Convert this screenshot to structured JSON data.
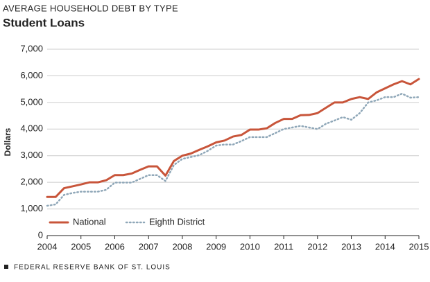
{
  "chart_data": {
    "type": "line",
    "title": "AVERAGE HOUSEHOLD DEBT BY TYPE",
    "subtitle": "Student Loans",
    "y_label": "Dollars",
    "source": "FEDERAL RESERVE BANK OF ST. LOUIS",
    "x": [
      2004,
      2004.25,
      2004.5,
      2004.75,
      2005,
      2005.25,
      2005.5,
      2005.75,
      2006,
      2006.25,
      2006.5,
      2006.75,
      2007,
      2007.25,
      2007.5,
      2007.75,
      2008,
      2008.25,
      2008.5,
      2008.75,
      2009,
      2009.25,
      2009.5,
      2009.75,
      2010,
      2010.25,
      2010.5,
      2010.75,
      2011,
      2011.25,
      2011.5,
      2011.75,
      2012,
      2012.25,
      2012.5,
      2012.75,
      2013,
      2013.25,
      2013.5,
      2013.75,
      2014,
      2014.25,
      2014.5,
      2014.75,
      2015
    ],
    "series": [
      {
        "name": "National",
        "color": "#c8553a",
        "style": "solid",
        "values": [
          1450,
          1450,
          1780,
          1850,
          1920,
          2000,
          2000,
          2080,
          2270,
          2270,
          2330,
          2470,
          2600,
          2600,
          2250,
          2800,
          3000,
          3080,
          3220,
          3350,
          3500,
          3570,
          3720,
          3780,
          3980,
          3980,
          4030,
          4230,
          4380,
          4380,
          4520,
          4530,
          4600,
          4800,
          5000,
          5000,
          5130,
          5200,
          5130,
          5380,
          5530,
          5680,
          5800,
          5680,
          5880
        ]
      },
      {
        "name": "Eighth District",
        "color": "#8fa7b8",
        "style": "dotted",
        "values": [
          1120,
          1170,
          1530,
          1600,
          1650,
          1650,
          1650,
          1720,
          1990,
          1990,
          1990,
          2130,
          2270,
          2270,
          2050,
          2650,
          2880,
          2950,
          3020,
          3180,
          3380,
          3420,
          3420,
          3550,
          3700,
          3700,
          3700,
          3850,
          4000,
          4060,
          4120,
          4060,
          4000,
          4200,
          4320,
          4450,
          4350,
          4600,
          5000,
          5080,
          5200,
          5200,
          5330,
          5180,
          5200
        ]
      }
    ],
    "xlim": [
      2004,
      2015
    ],
    "xticks": [
      2004,
      2005,
      2006,
      2007,
      2008,
      2009,
      2010,
      2011,
      2012,
      2013,
      2014,
      2015
    ],
    "ylim": [
      0,
      7000
    ],
    "yticks": [
      0,
      {
        "value": 1000,
        "label": "1,000"
      },
      {
        "value": 2000,
        "label": "2,000"
      },
      {
        "value": 3000,
        "label": "3,000"
      },
      {
        "value": 4000,
        "label": "4,000"
      },
      {
        "value": 5000,
        "label": "5,000"
      },
      {
        "value": 6000,
        "label": "6,000"
      },
      {
        "value": 7000,
        "label": "7,000"
      }
    ],
    "grid": true,
    "legend": "lower-left"
  }
}
